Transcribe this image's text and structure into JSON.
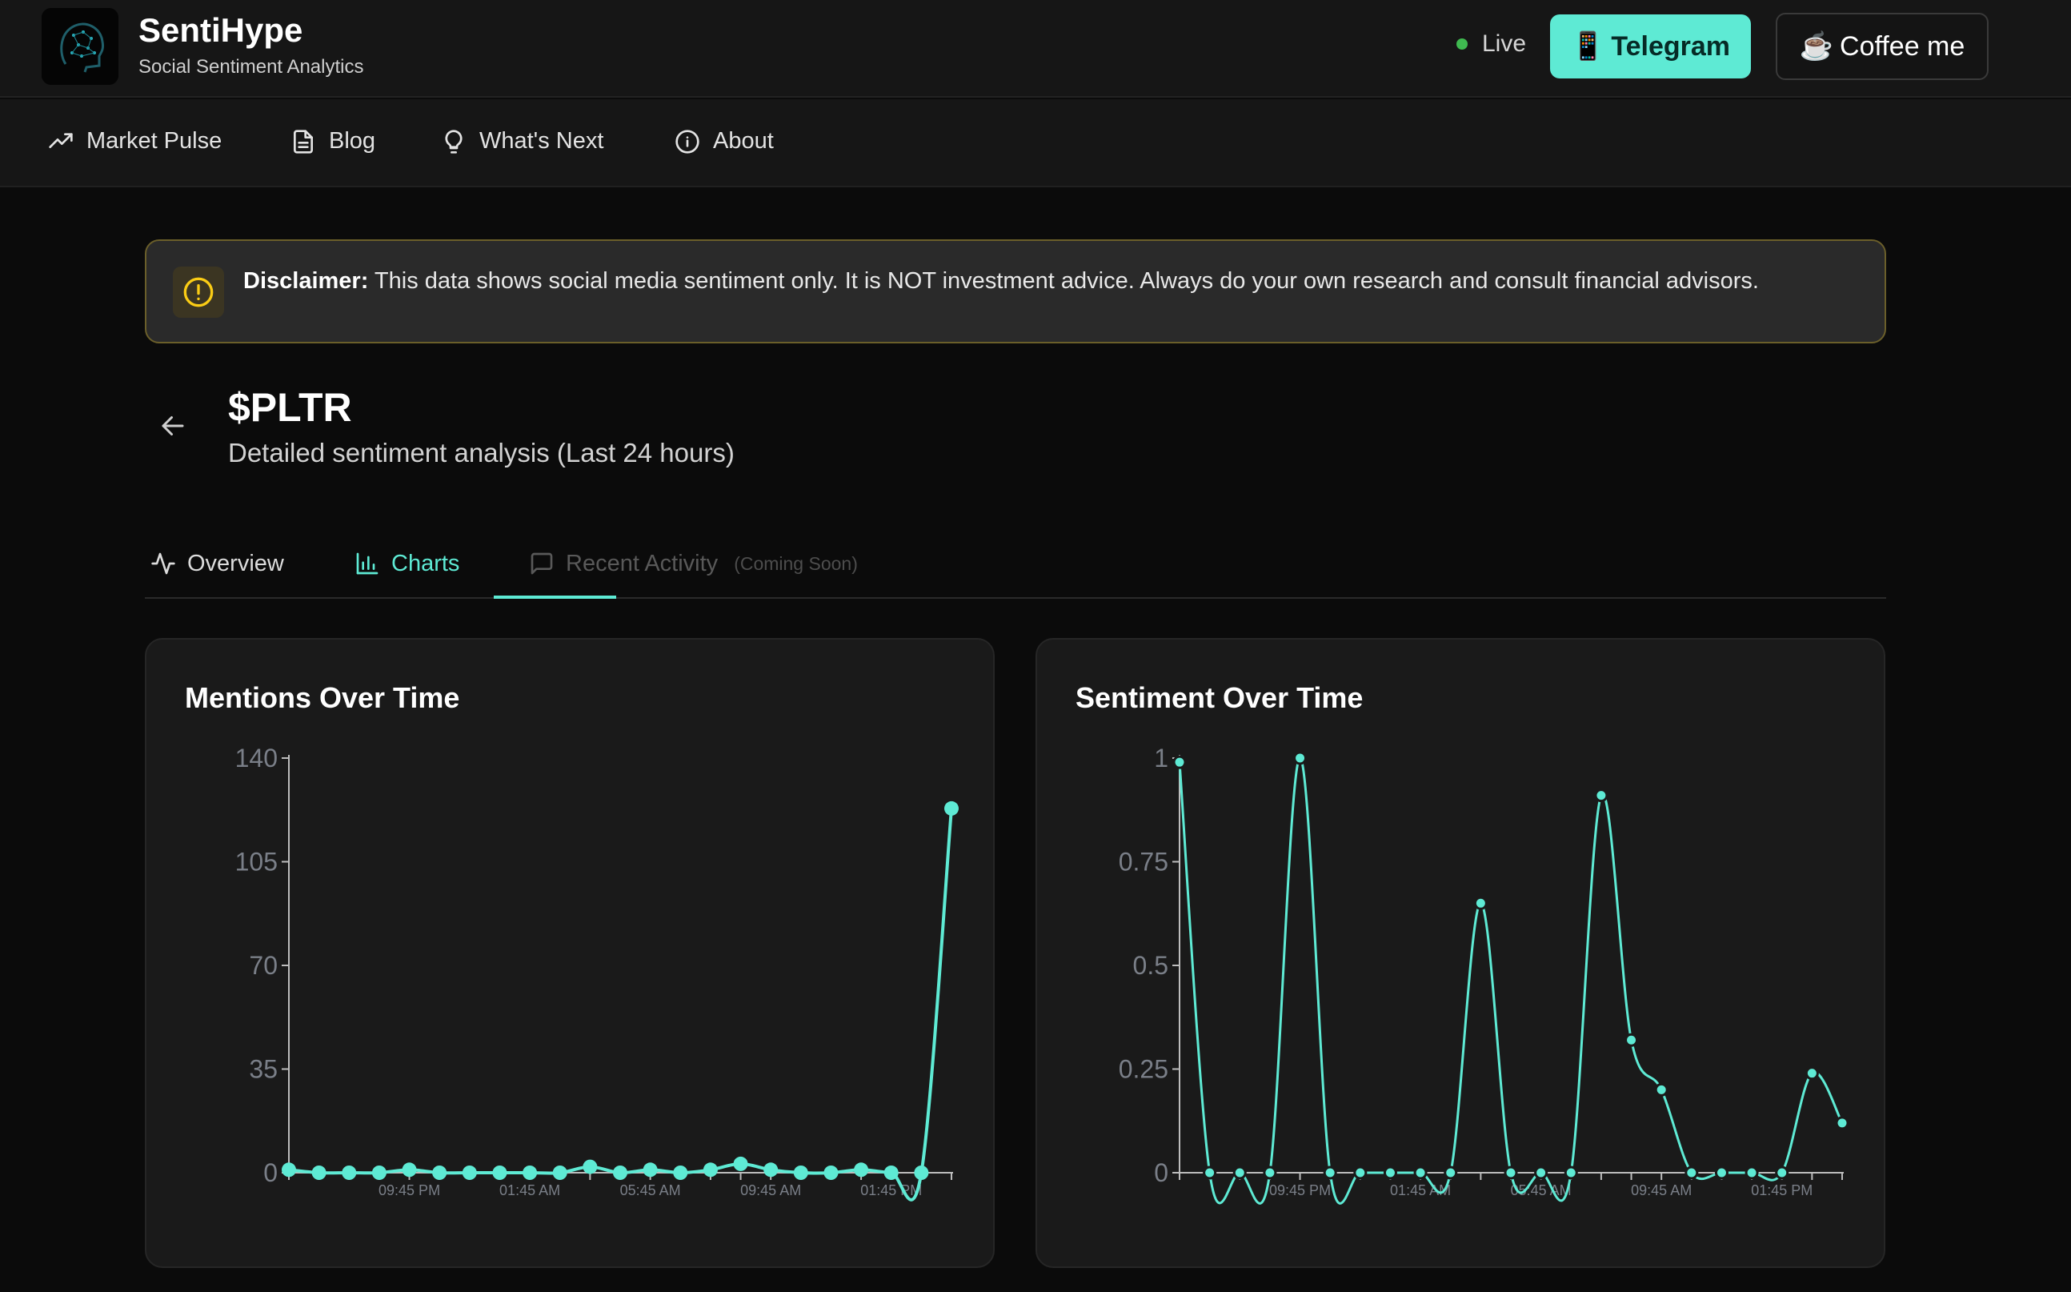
{
  "header": {
    "brand_title": "SentiHype",
    "brand_subtitle": "Social Sentiment Analytics",
    "live_label": "Live",
    "telegram_label": "Telegram",
    "telegram_icon": "📱",
    "coffee_label": "Coffee me",
    "coffee_icon": "☕",
    "accent_color": "#5eead4"
  },
  "nav": {
    "items": [
      {
        "label": "Market Pulse",
        "icon": "trending-up-icon"
      },
      {
        "label": "Blog",
        "icon": "document-icon"
      },
      {
        "label": "What's Next",
        "icon": "lightbulb-icon"
      },
      {
        "label": "About",
        "icon": "info-icon"
      }
    ]
  },
  "disclaimer": {
    "title": "Disclaimer:",
    "text": "This data shows social media sentiment only. It is NOT investment advice. Always do your own research and consult financial advisors."
  },
  "page": {
    "ticker": "$PLTR",
    "subtitle": "Detailed sentiment analysis (Last 24 hours)"
  },
  "tabs": [
    {
      "label": "Overview",
      "icon": "activity-icon",
      "active": false
    },
    {
      "label": "Charts",
      "icon": "bar-chart-icon",
      "active": true
    },
    {
      "label": "Recent Activity",
      "icon": "message-icon",
      "active": false,
      "badge": "(Coming Soon)"
    }
  ],
  "chart_data": [
    {
      "type": "line",
      "title": "Mentions Over Time",
      "color": "#5eead4",
      "ylim": [
        0,
        140
      ],
      "yticks": [
        "0",
        "35",
        "70",
        "105",
        "140"
      ],
      "xticks": [
        "09:45 PM",
        "01:45 AM",
        "05:45 AM",
        "09:45 AM",
        "01:45 PM"
      ],
      "xtick_index": [
        4,
        8,
        12,
        16,
        20
      ],
      "values": [
        1,
        0,
        0,
        0,
        1,
        0,
        0,
        0,
        0,
        0,
        2,
        0,
        1,
        0,
        1,
        3,
        1,
        0,
        0,
        1,
        0,
        0,
        123
      ]
    },
    {
      "type": "line",
      "title": "Sentiment Over Time",
      "color": "#5eead4",
      "ylim": [
        0,
        1
      ],
      "yticks": [
        "0",
        "0.25",
        "0.5",
        "0.75",
        "1"
      ],
      "xticks": [
        "09:45 PM",
        "01:45 AM",
        "05:45 AM",
        "09:45 AM",
        "01:45 PM"
      ],
      "xtick_index": [
        4,
        8,
        12,
        16,
        20
      ],
      "values": [
        0.99,
        0,
        0,
        0,
        1.0,
        0,
        0,
        0,
        0,
        0,
        0.65,
        0,
        0,
        0,
        0.91,
        0.32,
        0.2,
        0,
        0,
        0,
        0,
        0.24,
        0.12
      ]
    }
  ]
}
